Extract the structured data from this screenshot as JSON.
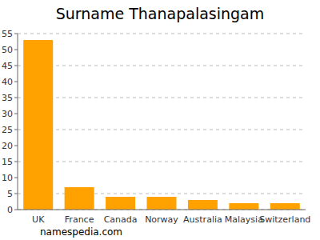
{
  "chart_data": {
    "type": "bar",
    "title": "Surname Thanapalasingam",
    "annotation": "namespedia.com",
    "categories": [
      "UK",
      "France",
      "Canada",
      "Norway",
      "Australia",
      "Malaysia",
      "Switzerland"
    ],
    "values": [
      53,
      7,
      4,
      4,
      3,
      2,
      2
    ],
    "color": "#ffa200",
    "ylim": [
      0,
      55
    ],
    "yticks": [
      0,
      5,
      10,
      15,
      20,
      25,
      30,
      35,
      40,
      45,
      50,
      55
    ],
    "grid": true
  }
}
